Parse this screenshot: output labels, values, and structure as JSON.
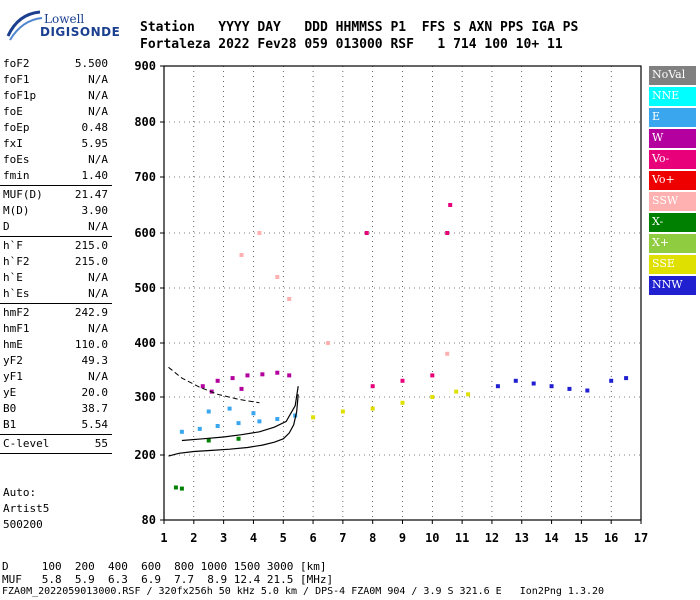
{
  "logo": {
    "line1": "Lowell",
    "line2": "DIGISONDE"
  },
  "header": {
    "line1": "Station   YYYY DAY   DDD HHMMSS P1  FFS S AXN PPS IGA PS",
    "line2": "Fortaleza 2022 Fev28 059 013000 RSF   1 714 100 10+ 11"
  },
  "params": [
    [
      {
        "k": "foF2",
        "v": "5.500"
      },
      {
        "k": "foF1",
        "v": "N/A"
      },
      {
        "k": "foF1p",
        "v": "N/A"
      },
      {
        "k": "foE",
        "v": "N/A"
      },
      {
        "k": "foEp",
        "v": "0.48"
      },
      {
        "k": "fxI",
        "v": "5.95"
      },
      {
        "k": "foEs",
        "v": "N/A"
      },
      {
        "k": "fmin",
        "v": "1.40"
      }
    ],
    [
      {
        "k": "MUF(D)",
        "v": "21.47"
      },
      {
        "k": "M(D)",
        "v": "3.90"
      },
      {
        "k": "D",
        "v": "N/A"
      }
    ],
    [
      {
        "k": "h`F",
        "v": "215.0"
      },
      {
        "k": "h`F2",
        "v": "215.0"
      },
      {
        "k": "h`E",
        "v": "N/A"
      },
      {
        "k": "h`Es",
        "v": "N/A"
      }
    ],
    [
      {
        "k": "hmF2",
        "v": "242.9"
      },
      {
        "k": "hmF1",
        "v": "N/A"
      },
      {
        "k": "hmE",
        "v": "110.0"
      },
      {
        "k": "yF2",
        "v": "49.3"
      },
      {
        "k": "yF1",
        "v": "N/A"
      },
      {
        "k": "yE",
        "v": "20.0"
      },
      {
        "k": "B0",
        "v": "38.7"
      },
      {
        "k": "B1",
        "v": "5.54"
      }
    ],
    [
      {
        "k": "C-level",
        "v": "55"
      }
    ]
  ],
  "extra": {
    "auto": "Auto:",
    "artist": "Artist5",
    "version": "500200"
  },
  "legend": [
    {
      "label": "NoVal",
      "color": "#808080"
    },
    {
      "label": "NNE",
      "color": "#00ffff"
    },
    {
      "label": "E",
      "color": "#3aa6ee"
    },
    {
      "label": "W",
      "color": "#b4009e"
    },
    {
      "label": "Vo-",
      "color": "#e8007a"
    },
    {
      "label": "Vo+",
      "color": "#ee0000"
    },
    {
      "label": "SSW",
      "color": "#ffb0b0"
    },
    {
      "label": "X-",
      "color": "#008000"
    },
    {
      "label": "X+",
      "color": "#90cc40"
    },
    {
      "label": "SSE",
      "color": "#e0e000"
    },
    {
      "label": "NNW",
      "color": "#2020d0"
    }
  ],
  "chart_data": {
    "type": "scatter",
    "xlim": [
      1,
      17
    ],
    "ylim": [
      80,
      900
    ],
    "x_ticks": [
      "1",
      "2",
      "3",
      "4",
      "5",
      "6",
      "7",
      "8",
      "9",
      "10",
      "11",
      "12",
      "13",
      "14",
      "15",
      "16",
      "17"
    ],
    "y_ticks": [
      "80",
      "200",
      "300",
      "400",
      "500",
      "600",
      "700",
      "800",
      "900"
    ],
    "xlabel": "",
    "ylabel": "",
    "grid": true,
    "series": [
      {
        "name": "E",
        "color": "#3aa6ee",
        "points": [
          [
            1.6,
            240
          ],
          [
            2.2,
            245
          ],
          [
            2.8,
            250
          ],
          [
            3.5,
            255
          ],
          [
            4.2,
            258
          ],
          [
            4.8,
            262
          ],
          [
            5.4,
            268
          ],
          [
            2.5,
            275
          ],
          [
            3.2,
            280
          ],
          [
            4.0,
            272
          ]
        ]
      },
      {
        "name": "W",
        "color": "#b4009e",
        "points": [
          [
            2.3,
            320
          ],
          [
            2.8,
            330
          ],
          [
            3.3,
            335
          ],
          [
            3.8,
            340
          ],
          [
            4.3,
            342
          ],
          [
            4.8,
            345
          ],
          [
            5.2,
            340
          ],
          [
            2.6,
            310
          ],
          [
            3.6,
            315
          ]
        ]
      },
      {
        "name": "SSE",
        "color": "#e0e000",
        "points": [
          [
            6.0,
            265
          ],
          [
            7.0,
            275
          ],
          [
            8.0,
            280
          ],
          [
            9.0,
            290
          ],
          [
            10.0,
            300
          ],
          [
            10.8,
            310
          ],
          [
            11.2,
            305
          ]
        ]
      },
      {
        "name": "NNW",
        "color": "#2020d0",
        "points": [
          [
            12.2,
            320
          ],
          [
            12.8,
            330
          ],
          [
            13.4,
            325
          ],
          [
            14.0,
            320
          ],
          [
            14.6,
            315
          ],
          [
            15.2,
            312
          ],
          [
            16.0,
            330
          ],
          [
            16.5,
            335
          ]
        ]
      },
      {
        "name": "Vo-",
        "color": "#e8007a",
        "points": [
          [
            8.0,
            320
          ],
          [
            9.0,
            330
          ],
          [
            10.0,
            340
          ],
          [
            10.5,
            600
          ],
          [
            10.6,
            650
          ],
          [
            7.8,
            600
          ]
        ]
      },
      {
        "name": "X-",
        "color": "#008000",
        "points": [
          [
            1.4,
            140
          ],
          [
            1.6,
            138
          ],
          [
            2.5,
            225
          ],
          [
            3.5,
            228
          ]
        ]
      },
      {
        "name": "SSW",
        "color": "#ffb0b0",
        "points": [
          [
            3.6,
            560
          ],
          [
            4.2,
            600
          ],
          [
            4.8,
            520
          ],
          [
            5.2,
            480
          ],
          [
            6.5,
            400
          ],
          [
            10.5,
            380
          ]
        ]
      }
    ],
    "profile": {
      "x": [
        1.15,
        1.5,
        2.0,
        2.6,
        3.2,
        3.8,
        4.3,
        4.7,
        5.0,
        5.2,
        5.35,
        5.45,
        5.5
      ],
      "y": [
        198,
        203,
        206,
        208,
        210,
        213,
        217,
        222,
        228,
        238,
        252,
        275,
        305
      ]
    },
    "trace": {
      "x": [
        1.6,
        2.3,
        3.0,
        3.6,
        4.2,
        4.7,
        5.1,
        5.4,
        5.5
      ],
      "y": [
        225,
        228,
        231,
        235,
        240,
        248,
        258,
        285,
        320
      ]
    },
    "dashed": {
      "x": [
        1.15,
        1.6,
        2.2,
        2.8,
        3.5,
        4.2
      ],
      "y": [
        355,
        335,
        318,
        305,
        296,
        290
      ]
    }
  },
  "footer": {
    "d_row": "D     100  200  400  600  800 1000 1500 3000 [km]",
    "muf_row": "MUF   5.8  5.9  6.3  6.9  7.7  8.9 12.4 21.5 [MHz]",
    "file_row": "FZA0M_2022059013000.RSF / 320fx256h 50 kHz 5.0 km / DPS-4 FZA0M 904 / 3.9 S 321.6 E   Ion2Png 1.3.20"
  }
}
